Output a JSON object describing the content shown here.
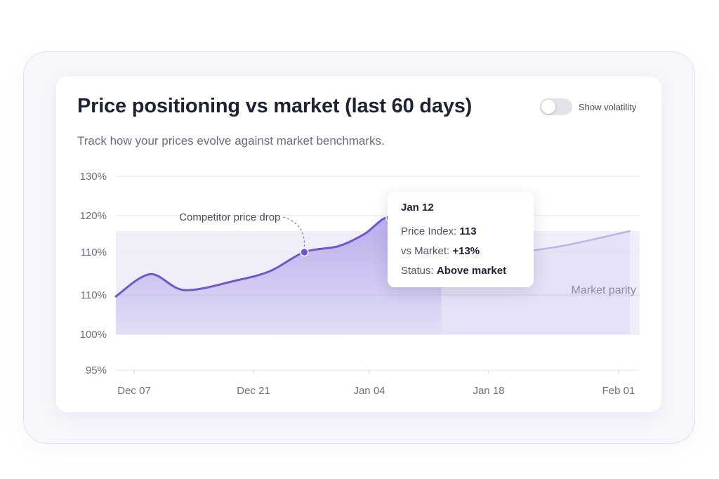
{
  "card": {
    "title": "Price positioning vs market (last 60 days)",
    "subtitle": "Track how your prices evolve against market benchmarks.",
    "toggle": {
      "label": "Show volatility",
      "on": false
    }
  },
  "tooltip": {
    "date": "Jan 12",
    "rows": [
      {
        "label": "Price Index:",
        "value": "113"
      },
      {
        "label": "vs Market:",
        "value": "+13%"
      },
      {
        "label": "Status:",
        "value": "Above market"
      }
    ]
  },
  "colors": {
    "line": "#6f58cc",
    "line_light": "#bdb2ec",
    "area": "#a995e8",
    "band": "#ebe8f7",
    "grid": "#e5e6ec",
    "text": "#6a6d7e"
  },
  "chart_data": {
    "type": "line",
    "title": "Price positioning vs market (last 60 days)",
    "xlabel": "",
    "ylabel": "",
    "y_tick_labels": [
      "130%",
      "120%",
      "110%",
      "110%",
      "100%",
      "95%"
    ],
    "x_tick_labels": [
      "Dec 07",
      "Dec 21",
      "Jan 04",
      "Jan 18",
      "Feb 01"
    ],
    "grid": true,
    "legend": "none",
    "band": {
      "label": "Market parity",
      "from": 100,
      "to": 115
    },
    "series": [
      {
        "points": [
          [
            "2023-12-05",
            106
          ],
          [
            "2023-12-09",
            109.5
          ],
          [
            "2023-12-13",
            107
          ],
          [
            "2023-12-19",
            108.5
          ],
          [
            "2023-12-23",
            110
          ],
          [
            "2023-12-27",
            113
          ],
          [
            "2023-12-31",
            114
          ],
          [
            "2024-01-03",
            116
          ],
          [
            "2024-01-06",
            119.5
          ],
          [
            "2024-01-08",
            113
          ],
          [
            "2024-01-12",
            113
          ],
          [
            "2024-01-20",
            113
          ],
          [
            "2024-01-26",
            114
          ],
          [
            "2024-02-03",
            116.5
          ]
        ]
      }
    ],
    "markers": [
      {
        "x": "2023-12-27",
        "y": 113
      },
      {
        "x": "2024-01-06",
        "y": 119.5
      },
      {
        "x": "2024-01-08",
        "y": 113
      }
    ],
    "annotations": [
      {
        "text": "Competitor price drop",
        "x": "2023-12-27",
        "y": 113
      }
    ],
    "projected_from": "2024-01-12"
  }
}
